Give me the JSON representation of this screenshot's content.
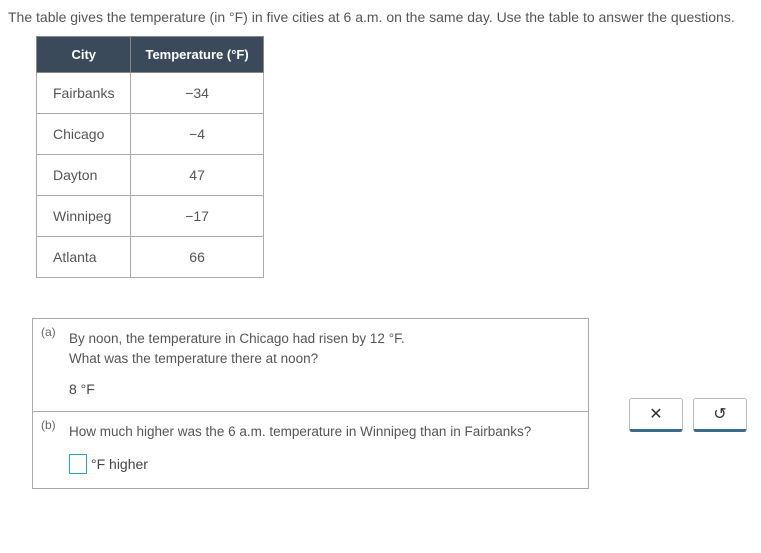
{
  "intro": "The table gives the temperature (in °F) in five cities at 6 a.m. on the same day. Use the table to answer the questions.",
  "table": {
    "headers": {
      "city": "City",
      "temp": "Temperature (°F)"
    },
    "rows": [
      {
        "city": "Fairbanks",
        "temp": "−34"
      },
      {
        "city": "Chicago",
        "temp": "−4"
      },
      {
        "city": "Dayton",
        "temp": "47"
      },
      {
        "city": "Winnipeg",
        "temp": "−17"
      },
      {
        "city": "Atlanta",
        "temp": "66"
      }
    ],
    "header_bg": "#3a4a5a",
    "header_fg": "#ffffff",
    "border_color": "#aaaaaa"
  },
  "questions": {
    "a": {
      "label": "(a)",
      "line1": "By noon, the temperature in Chicago had risen by 12 °F.",
      "line2": "What was the temperature there at noon?",
      "answer": "8 °F"
    },
    "b": {
      "label": "(b)",
      "text": "How much higher was the 6 a.m. temperature in Winnipeg than in Fairbanks?",
      "unit": "°F higher"
    }
  },
  "buttons": {
    "close": "✕",
    "reset": "↺"
  }
}
